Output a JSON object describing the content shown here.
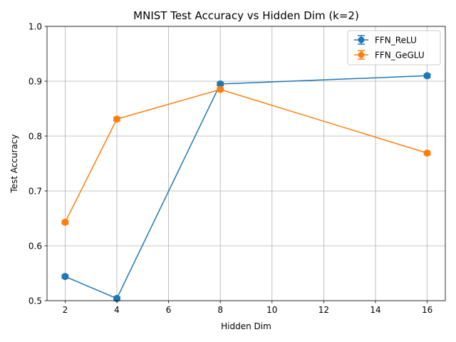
{
  "chart_data": {
    "type": "line",
    "title": "MNIST Test Accuracy vs Hidden Dim (k=2)",
    "xlabel": "Hidden Dim",
    "ylabel": "Test Accuracy",
    "xlim": [
      1.3,
      16.7
    ],
    "ylim": [
      0.5,
      1.0
    ],
    "xticks": [
      2,
      4,
      6,
      8,
      10,
      12,
      14,
      16
    ],
    "yticks": [
      0.5,
      0.6,
      0.7,
      0.8,
      0.9,
      1.0
    ],
    "grid": true,
    "legend_position": "top-right",
    "series": [
      {
        "name": "FFN_ReLU",
        "color": "#1f77b4",
        "marker": "circle",
        "x": [
          2,
          4,
          8,
          16
        ],
        "y": [
          0.544,
          0.504,
          0.895,
          0.91
        ],
        "yerr": [
          0.003,
          0.003,
          0.003,
          0.003
        ]
      },
      {
        "name": "FFN_GeGLU",
        "color": "#ff7f0e",
        "marker": "circle",
        "x": [
          2,
          4,
          8,
          16
        ],
        "y": [
          0.643,
          0.831,
          0.885,
          0.769
        ],
        "yerr": [
          0.003,
          0.003,
          0.003,
          0.003
        ]
      }
    ]
  }
}
